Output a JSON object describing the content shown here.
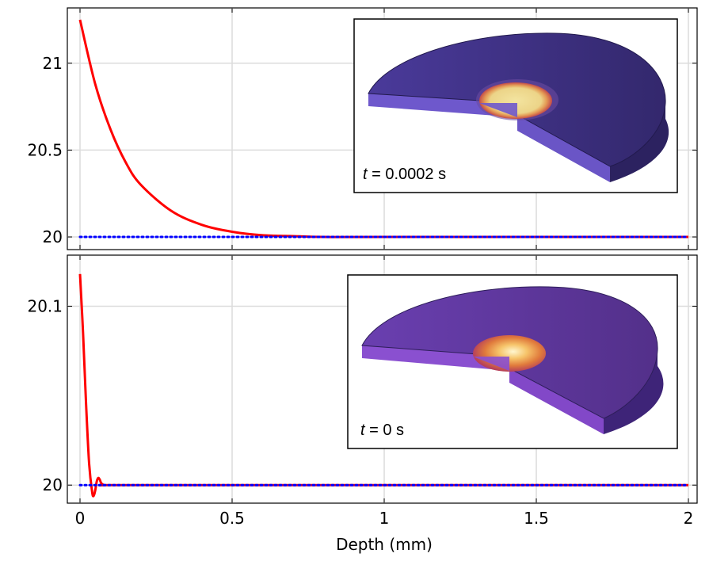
{
  "chart_data": [
    {
      "type": "line",
      "panel": "top",
      "title": "",
      "xlabel": "",
      "ylabel": "",
      "xlim": [
        0,
        2
      ],
      "ylim": [
        19.95,
        21.3
      ],
      "x_ticks": [
        0,
        0.5,
        1,
        1.5,
        2
      ],
      "y_ticks": [
        20,
        20.5,
        21
      ],
      "y_tick_labels": [
        "20",
        "20.5",
        "21"
      ],
      "grid": true,
      "series": [
        {
          "name": "solid",
          "color": "#ff0000",
          "style": "solid",
          "x": [
            0,
            0.05,
            0.1,
            0.15,
            0.2,
            0.3,
            0.4,
            0.5,
            0.6,
            0.7,
            0.8,
            1.0,
            1.5,
            2.0
          ],
          "y": [
            21.25,
            20.88,
            20.62,
            20.43,
            20.3,
            20.15,
            20.07,
            20.03,
            20.01,
            20.005,
            20.0,
            20.0,
            20.0,
            20.0
          ]
        },
        {
          "name": "dotted",
          "color": "#0000ff",
          "style": "dotted",
          "x": [
            0,
            2
          ],
          "y": [
            20,
            20
          ]
        }
      ],
      "inset": {
        "label_var": "t",
        "label_value": " = 0.0002 s",
        "theme": "hot"
      }
    },
    {
      "type": "line",
      "panel": "bottom",
      "title": "",
      "xlabel": "Depth (mm)",
      "ylabel": "",
      "xlim": [
        0,
        2
      ],
      "ylim": [
        19.993,
        20.125
      ],
      "x_ticks": [
        0,
        0.5,
        1,
        1.5,
        2
      ],
      "x_tick_labels": [
        "0",
        "0.5",
        "1",
        "1.5",
        "2"
      ],
      "y_ticks": [
        20,
        20.1
      ],
      "y_tick_labels": [
        "20",
        "20.1"
      ],
      "grid": true,
      "series": [
        {
          "name": "solid",
          "color": "#ff0000",
          "style": "solid",
          "x": [
            0,
            0.01,
            0.02,
            0.03,
            0.04,
            0.045,
            0.05,
            0.055,
            0.06,
            0.065,
            0.07,
            0.08,
            0.1,
            0.5,
            1.0,
            2.0
          ],
          "y": [
            20.118,
            20.085,
            20.045,
            20.012,
            19.996,
            19.994,
            19.997,
            20.002,
            20.004,
            20.003,
            20.001,
            20.0,
            20.0,
            20.0,
            20.0,
            20.0
          ]
        },
        {
          "name": "dotted",
          "color": "#0000ff",
          "style": "dotted",
          "x": [
            0,
            2
          ],
          "y": [
            20,
            20
          ]
        }
      ],
      "inset": {
        "label_var": "t",
        "label_value": " = 0 s",
        "theme": "warm"
      }
    }
  ]
}
